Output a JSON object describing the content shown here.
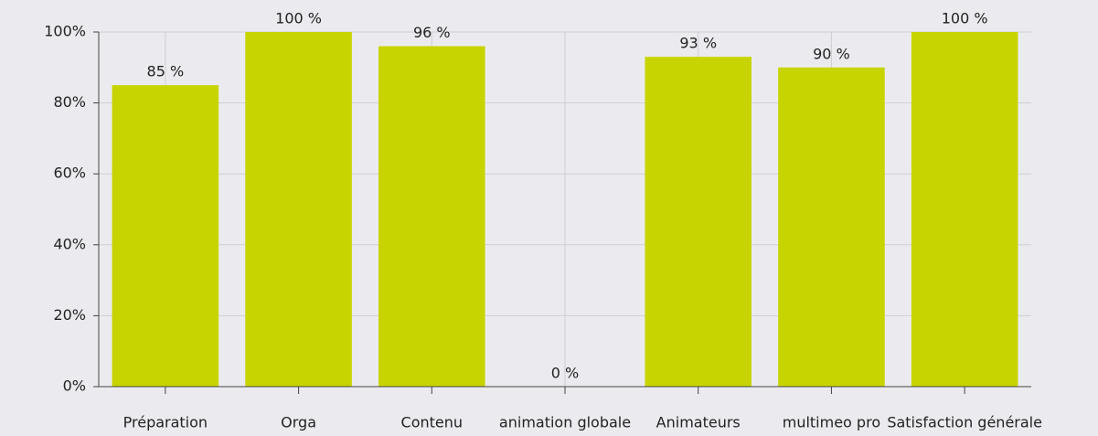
{
  "chart_data": {
    "type": "bar",
    "categories": [
      "Préparation",
      "Orga",
      "Contenu",
      "animation globale",
      "Animateurs",
      "multimeo pro",
      "Satisfaction générale"
    ],
    "values": [
      85,
      100,
      96,
      0,
      93,
      90,
      100
    ],
    "value_labels": [
      "85 %",
      "100 %",
      "96 %",
      "0 %",
      "93 %",
      "90 %",
      "100 %"
    ],
    "color": "#c8d400",
    "ylim": [
      0,
      100
    ],
    "yticks": [
      {
        "value": 0,
        "label": "0%"
      },
      {
        "value": 20,
        "label": "20%"
      },
      {
        "value": 40,
        "label": "40%"
      },
      {
        "value": 60,
        "label": "60%"
      },
      {
        "value": 80,
        "label": "80%"
      },
      {
        "value": 100,
        "label": "100%"
      }
    ],
    "grid": true
  }
}
